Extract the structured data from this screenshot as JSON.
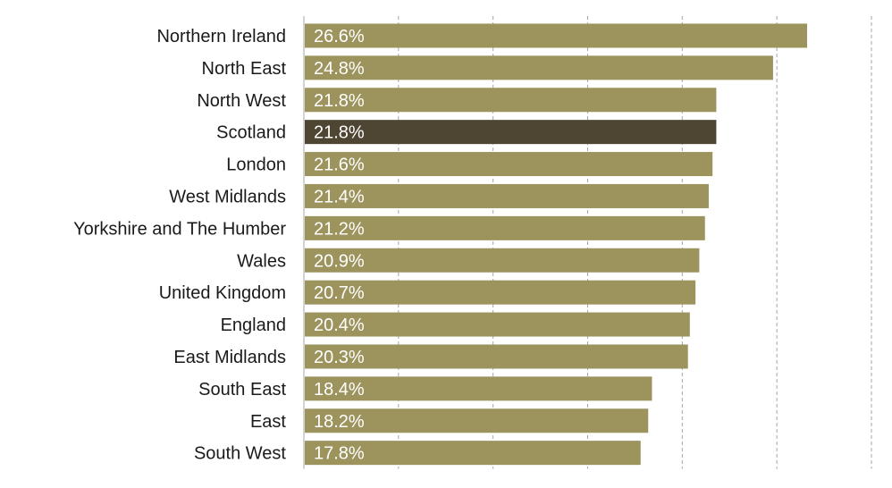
{
  "chart_data": {
    "type": "bar",
    "orientation": "horizontal",
    "title": "",
    "xlabel": "",
    "ylabel": "",
    "categories": [
      "Northern Ireland",
      "North East",
      "North West",
      "Scotland",
      "London",
      "West Midlands",
      "Yorkshire and The Humber",
      "Wales",
      "United Kingdom",
      "England",
      "East Midlands",
      "South East",
      "East",
      "South West"
    ],
    "values": [
      26.6,
      24.8,
      21.8,
      21.8,
      21.6,
      21.4,
      21.2,
      20.9,
      20.7,
      20.4,
      20.3,
      18.4,
      18.2,
      17.8
    ],
    "value_labels": [
      "26.6%",
      "24.8%",
      "21.8%",
      "21.8%",
      "21.6%",
      "21.4%",
      "21.2%",
      "20.9%",
      "20.7%",
      "20.4%",
      "20.3%",
      "18.4%",
      "18.2%",
      "17.8%"
    ],
    "highlight": "Scotland",
    "xlim": [
      0,
      30
    ],
    "gridlines": "vertical dashed",
    "bar_color": "#9c935d",
    "highlight_color": "#4e4632",
    "grid_color": "#a6a6a6"
  }
}
